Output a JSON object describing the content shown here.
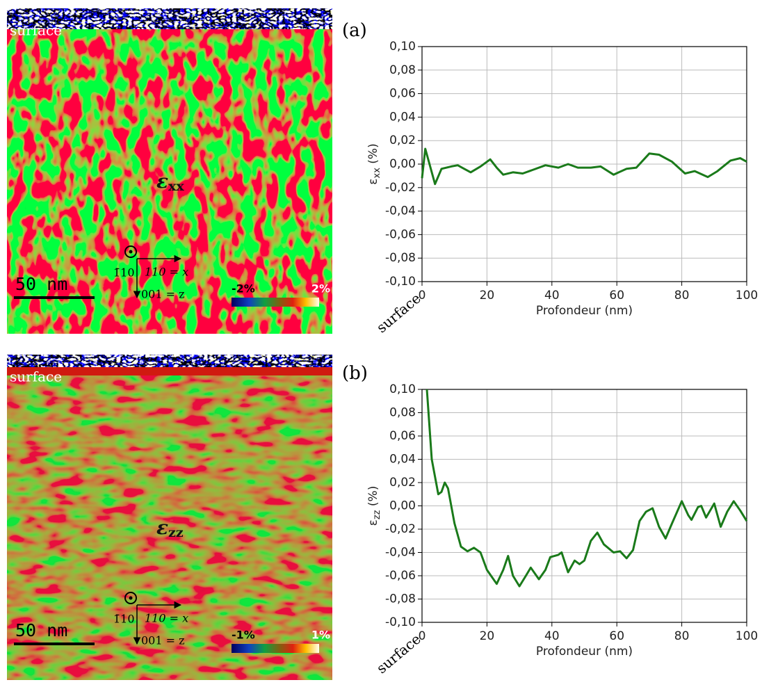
{
  "chart_data": [
    {
      "type": "line",
      "panel_label": "(a)",
      "origin_label": "surface",
      "xlabel": "Profondeur (nm)",
      "ylabel": [
        "ε",
        "xx",
        " (%)"
      ],
      "x": [
        0,
        1,
        4,
        6,
        9,
        11,
        13,
        15,
        18,
        21,
        23,
        25,
        28,
        31,
        34,
        38,
        42,
        45,
        48,
        52,
        55,
        59,
        63,
        66,
        70,
        73,
        77,
        81,
        84,
        88,
        91,
        95,
        98,
        100
      ],
      "values": [
        -0.012,
        0.013,
        -0.017,
        -0.004,
        -0.002,
        -0.001,
        -0.004,
        -0.007,
        -0.002,
        0.004,
        -0.003,
        -0.009,
        -0.007,
        -0.008,
        -0.005,
        -0.001,
        -0.003,
        0.0,
        -0.003,
        -0.003,
        -0.002,
        -0.009,
        -0.004,
        -0.003,
        0.009,
        0.008,
        0.002,
        -0.008,
        -0.006,
        -0.011,
        -0.006,
        0.003,
        0.005,
        0.002
      ],
      "color": "#1a7a1a",
      "xlim": [
        0,
        100
      ],
      "ylim": [
        -0.1,
        0.1
      ],
      "xticks": [
        0,
        20,
        40,
        60,
        80,
        100
      ],
      "yticks": [
        {
          "value": 0.1,
          "label": "0,10"
        },
        {
          "value": 0.08,
          "label": "0,08"
        },
        {
          "value": 0.06,
          "label": "0,06"
        },
        {
          "value": 0.04,
          "label": "0,04"
        },
        {
          "value": 0.02,
          "label": "0,02"
        },
        {
          "value": 0.0,
          "label": "0,00"
        },
        {
          "value": -0.02,
          "label": "-0,02"
        },
        {
          "value": -0.04,
          "label": "-0,04"
        },
        {
          "value": -0.06,
          "label": "-0,06"
        },
        {
          "value": -0.08,
          "label": "-0,08"
        },
        {
          "value": -0.1,
          "label": "-0,10"
        }
      ],
      "grid": true
    },
    {
      "type": "line",
      "panel_label": "(b)",
      "origin_label": "surface",
      "xlabel": "Profondeur (nm)",
      "ylabel": [
        "ε",
        "zz",
        " (%)"
      ],
      "x": [
        1.5,
        3,
        5,
        6,
        7,
        8,
        10,
        12,
        14,
        16,
        18,
        20,
        23,
        25,
        26.5,
        28,
        30,
        32,
        33.5,
        36,
        38,
        39.5,
        42,
        43,
        45,
        47,
        48.5,
        50,
        52,
        54,
        56,
        59,
        61,
        63,
        65,
        67,
        69,
        71,
        73,
        75,
        77,
        80,
        82,
        83,
        85,
        86,
        87.5,
        90,
        92,
        94,
        96,
        98,
        100
      ],
      "values": [
        0.1,
        0.04,
        0.01,
        0.012,
        0.02,
        0.015,
        -0.015,
        -0.035,
        -0.039,
        -0.036,
        -0.04,
        -0.055,
        -0.067,
        -0.055,
        -0.043,
        -0.06,
        -0.069,
        -0.06,
        -0.053,
        -0.063,
        -0.055,
        -0.044,
        -0.042,
        -0.04,
        -0.057,
        -0.047,
        -0.05,
        -0.047,
        -0.03,
        -0.023,
        -0.033,
        -0.04,
        -0.039,
        -0.045,
        -0.038,
        -0.013,
        -0.005,
        -0.002,
        -0.018,
        -0.028,
        -0.015,
        0.004,
        -0.008,
        -0.012,
        -0.001,
        0.0,
        -0.01,
        0.002,
        -0.018,
        -0.005,
        0.004,
        -0.004,
        -0.013
      ],
      "color": "#1a7a1a",
      "xlim": [
        0,
        100
      ],
      "ylim": [
        -0.1,
        0.1
      ],
      "xticks": [
        0,
        20,
        40,
        60,
        80,
        100
      ],
      "yticks": [
        {
          "value": 0.1,
          "label": "0,10"
        },
        {
          "value": 0.08,
          "label": "0,08"
        },
        {
          "value": 0.06,
          "label": "0,06"
        },
        {
          "value": 0.04,
          "label": "0,04"
        },
        {
          "value": 0.02,
          "label": "0,02"
        },
        {
          "value": 0.0,
          "label": "0,00"
        },
        {
          "value": -0.02,
          "label": "-0,02"
        },
        {
          "value": -0.04,
          "label": "-0,04"
        },
        {
          "value": -0.06,
          "label": "-0,06"
        },
        {
          "value": -0.08,
          "label": "-0,08"
        },
        {
          "value": -0.1,
          "label": "-0,10"
        }
      ],
      "grid": true
    }
  ],
  "maps": [
    {
      "surface": "surface",
      "symbol": "ε",
      "subscript": "xx",
      "scale_bar": "50 nm",
      "axis_normal": "1̄10",
      "axis_x": "110 = x",
      "axis_z": "001 = z",
      "colorbar_min": "-2%",
      "colorbar_max": "2%"
    },
    {
      "surface": "surface",
      "symbol": "ε",
      "subscript": "zz",
      "scale_bar": "50 nm",
      "axis_normal": "1̄10",
      "axis_x": "110 = x",
      "axis_z": "001 = z",
      "colorbar_min": "-1%",
      "colorbar_max": "1%"
    }
  ]
}
